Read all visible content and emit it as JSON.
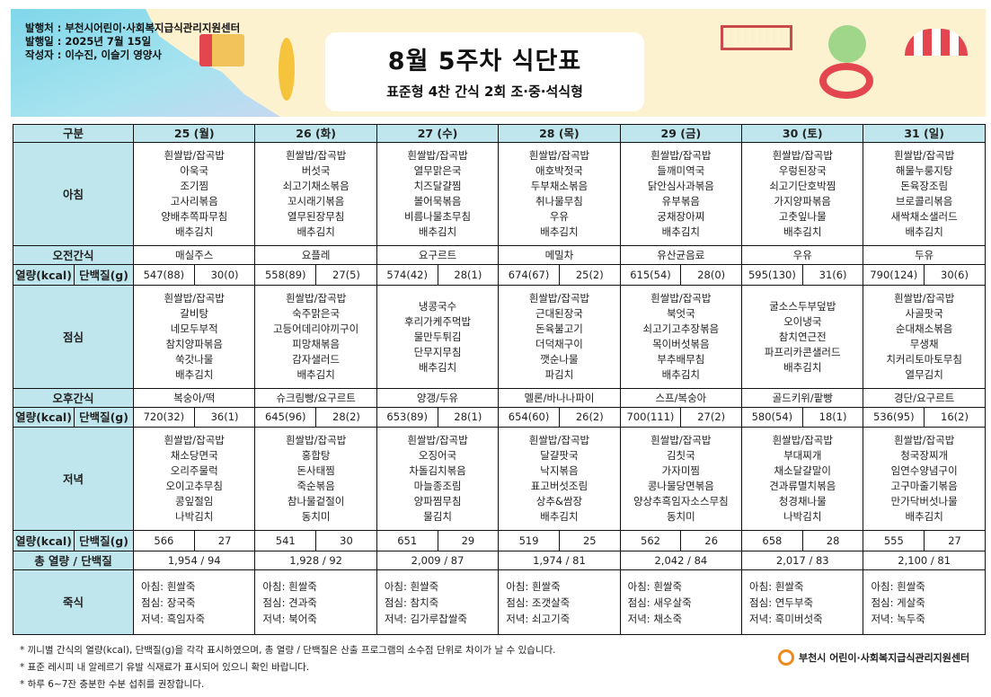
{
  "header": {
    "publisher": "발행처 : 부천시어린이·사회복지급식관리지원센터",
    "date": "발행일 : 2025년 7월 15일",
    "author": "작성자 : 이수진, 이슬기 영양사",
    "title": "8월 5주차 식단표",
    "subtitle": "표준형 4찬 간식 2회 조·중·석식형"
  },
  "table": {
    "label_header": "구분",
    "labels": {
      "breakfast": "아침",
      "am_snack": "오전간식",
      "kcal": "열량(kcal)",
      "protein": "단백질(g)",
      "lunch": "점심",
      "pm_snack": "오후간식",
      "dinner": "저녁",
      "total": "총 열량 / 단백질",
      "porridge": "죽식"
    },
    "days": [
      {
        "day": "25 (월)",
        "breakfast": [
          "흰쌀밥/잡곡밥",
          "아욱국",
          "조기찜",
          "고사리볶음",
          "양배추쪽파무침",
          "배추김치"
        ],
        "am_snack": "매실주스",
        "am_kcal": "547(88)",
        "am_protein": "30(0)",
        "lunch": [
          "흰쌀밥/잡곡밥",
          "갈비탕",
          "네모두부적",
          "참치양파볶음",
          "쑥갓나물",
          "배추김치"
        ],
        "pm_snack": "복숭아/떡",
        "pm_kcal": "720(32)",
        "pm_protein": "36(1)",
        "dinner": [
          "흰쌀밥/잡곡밥",
          "채소당면국",
          "오리주물럭",
          "오이고추무침",
          "콩잎절임",
          "나박김치"
        ],
        "dn_kcal": "566",
        "dn_protein": "27",
        "total": "1,954  /  94",
        "porridge": [
          "아침: 흰쌀죽",
          "점심: 장국죽",
          "저녁: 흑임자죽"
        ]
      },
      {
        "day": "26 (화)",
        "breakfast": [
          "흰쌀밥/잡곡밥",
          "버섯국",
          "쇠고기채소볶음",
          "꼬시래기볶음",
          "열무된장무침",
          "배추김치"
        ],
        "am_snack": "요플레",
        "am_kcal": "558(89)",
        "am_protein": "27(5)",
        "lunch": [
          "흰쌀밥/잡곡밥",
          "숙주맑은국",
          "고등어데리야끼구이",
          "피망채볶음",
          "감자샐러드",
          "배추김치"
        ],
        "pm_snack": "슈크림빵/요구르트",
        "pm_kcal": "645(96)",
        "pm_protein": "28(2)",
        "dinner": [
          "흰쌀밥/잡곡밥",
          "홍합탕",
          "돈사태찜",
          "죽순볶음",
          "참나물겉절이",
          "동치미"
        ],
        "dn_kcal": "541",
        "dn_protein": "30",
        "total": "1,928  /  92",
        "porridge": [
          "아침:  흰쌀죽",
          "점심:  견과죽",
          "저녁:  북어죽"
        ]
      },
      {
        "day": "27 (수)",
        "breakfast": [
          "흰쌀밥/잡곡밥",
          "열무맑은국",
          "치즈달걀찜",
          "볼어묵볶음",
          "비름나물초무침",
          "배추김치"
        ],
        "am_snack": "요구르트",
        "am_kcal": "574(42)",
        "am_protein": "28(1)",
        "lunch": [
          "냉콩국수",
          "후리가케주먹밥",
          "물만두튀김",
          "단무지무침",
          "배추김치"
        ],
        "pm_snack": "양갱/두유",
        "pm_kcal": "653(89)",
        "pm_protein": "28(1)",
        "dinner": [
          "흰쌀밥/잡곡밥",
          "오징어국",
          "차돌김치볶음",
          "마늘종조림",
          "양파찜무침",
          "물김치"
        ],
        "dn_kcal": "651",
        "dn_protein": "29",
        "total": "2,009  /  87",
        "porridge": [
          "아침: 흰쌀죽",
          "점심: 참치죽",
          "저녁:  김가루찹쌀죽"
        ]
      },
      {
        "day": "28 (목)",
        "breakfast": [
          "흰쌀밥/잡곡밥",
          "애호박젓국",
          "두부채소볶음",
          "취나물무침",
          "우유",
          "배추김치"
        ],
        "am_snack": "메밀차",
        "am_kcal": "674(67)",
        "am_protein": "25(2)",
        "lunch": [
          "흰쌀밥/잡곡밥",
          "근대된장국",
          "돈육불고기",
          "더덕채구이",
          "깻순나물",
          "파김치"
        ],
        "pm_snack": "멜론/바나나파이",
        "pm_kcal": "654(60)",
        "pm_protein": "26(2)",
        "dinner": [
          "흰쌀밥/잡곡밥",
          "달걀팟국",
          "낙지볶음",
          "표고버섯조림",
          "상추&쌈장",
          "배추김치"
        ],
        "dn_kcal": "519",
        "dn_protein": "25",
        "total": "1,974  /  81",
        "porridge": [
          "아침: 흰쌀죽",
          "점심: 조갯살죽",
          "저녁:  쇠고기죽"
        ]
      },
      {
        "day": "29 (금)",
        "breakfast": [
          "흰쌀밥/잡곡밥",
          "들깨미역국",
          "닭안심사과볶음",
          "유부볶음",
          "궁채장아찌",
          "배추김치"
        ],
        "am_snack": "유산균음료",
        "am_kcal": "615(54)",
        "am_protein": "28(0)",
        "lunch": [
          "흰쌀밥/잡곡밥",
          "북엇국",
          "쇠고기고추장볶음",
          "목이버섯볶음",
          "부추배무침",
          "배추김치"
        ],
        "pm_snack": "스프/복숭아",
        "pm_kcal": "700(111)",
        "pm_protein": "27(2)",
        "dinner": [
          "흰쌀밥/잡곡밥",
          "김칫국",
          "가자미찜",
          "콩나물당면볶음",
          "양상추흑임자소스무침",
          "동치미"
        ],
        "dn_kcal": "562",
        "dn_protein": "26",
        "total": "2,042  /  84",
        "porridge": [
          "아침: 흰쌀죽",
          "점심: 새우살죽",
          "저녁: 채소죽"
        ]
      },
      {
        "day": "30 (토)",
        "breakfast": [
          "흰쌀밥/잡곡밥",
          "우렁된장국",
          "쇠고기단호박찜",
          "가지양파볶음",
          "고춧잎나물",
          "배추김치"
        ],
        "am_snack": "우유",
        "am_kcal": "595(130)",
        "am_protein": "31(6)",
        "lunch": [
          "굴소스두부덮밥",
          "오이냉국",
          "참치연근전",
          "파프리카콘샐러드",
          "배추김치"
        ],
        "pm_snack": "골드키위/팥빵",
        "pm_kcal": "580(54)",
        "pm_protein": "18(1)",
        "dinner": [
          "흰쌀밥/잡곡밥",
          "부대찌개",
          "채소달걀말이",
          "견과류멸치볶음",
          "청경채나물",
          "나박김치"
        ],
        "dn_kcal": "658",
        "dn_protein": "28",
        "total": "2,017  /  83",
        "porridge": [
          "아침: 흰쌀죽",
          "점심: 연두부죽",
          "저녁: 흑미버섯죽"
        ]
      },
      {
        "day": "31 (일)",
        "breakfast": [
          "흰쌀밥/잡곡밥",
          "해물누룽지탕",
          "돈육장조림",
          "브로콜리볶음",
          "새싹채소샐러드",
          "배추김치"
        ],
        "am_snack": "두유",
        "am_kcal": "790(124)",
        "am_protein": "30(6)",
        "lunch": [
          "흰쌀밥/잡곡밥",
          "사골팟국",
          "순대채소볶음",
          "무생채",
          "치커리토마토무침",
          "열무김치"
        ],
        "pm_snack": "경단/요구르트",
        "pm_kcal": "536(95)",
        "pm_protein": "16(2)",
        "dinner": [
          "흰쌀밥/잡곡밥",
          "청국장찌개",
          "임연수양념구이",
          "고구마줄기볶음",
          "만가닥버섯나물",
          "배추김치"
        ],
        "dn_kcal": "555",
        "dn_protein": "27",
        "total": "2,100  /  81",
        "porridge": [
          "아침:  흰쌀죽",
          "점심:  게살죽",
          "저녁:  녹두죽"
        ]
      }
    ]
  },
  "notes": [
    "* 끼니별 간식의 열량(kcal), 단백질(g)을 각각 표시하였으며, 총 열량 / 단백질은 산출 프로그램의 소수점 단위로 차이가 날 수 있습니다.",
    "* 표준 레시피 내 알레르기 유발 식재료가 표시되어 있으니 확인 바랍니다.",
    "* 하루 6~7잔 충분한 수분 섭취를 권장합니다."
  ],
  "footer_logo": "부천시 어린이·사회복지급식관리지원센터",
  "colors": {
    "header_bg": "#bfe6ec",
    "banner_bg": "#fdf2cf",
    "logo_orange": "#f08a1c"
  }
}
